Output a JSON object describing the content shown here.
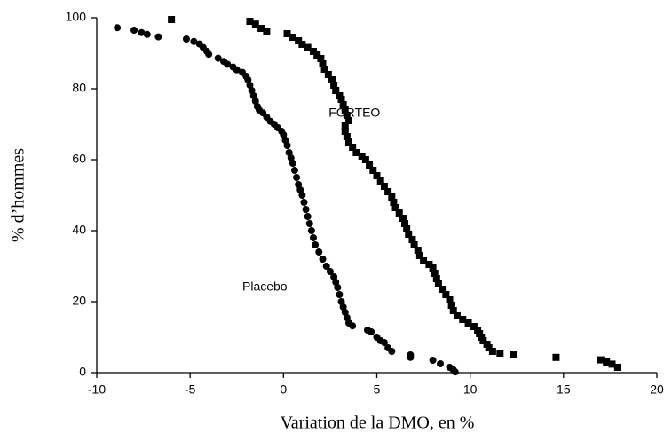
{
  "chart_data": {
    "type": "scatter",
    "xlabel": "Variation de la DMO, en %",
    "ylabel": "% d’hommes",
    "xlim": [
      -10,
      20
    ],
    "xticks": [
      -10,
      -5,
      0,
      5,
      10,
      15,
      20
    ],
    "ylim": [
      0,
      100
    ],
    "yticks": [
      0,
      20,
      40,
      60,
      80,
      100
    ],
    "grid": false,
    "annotations": [
      {
        "text": "FORTEO",
        "x": 3.8,
        "y": 73
      },
      {
        "text": "Placebo",
        "x": -1,
        "y": 24
      }
    ],
    "series": [
      {
        "name": "Placebo",
        "color": "#000000",
        "marker": "circle",
        "x": [
          -8.9,
          -8,
          -7.6,
          -7.3,
          -6.7,
          -5.2,
          -4.8,
          -4.5,
          -4.3,
          -4.1,
          -4,
          -3.5,
          -3.2,
          -3,
          -2.7,
          -2.5,
          -2.2,
          -2,
          -1.9,
          -1.8,
          -1.7,
          -1.6,
          -1.5,
          -1.4,
          -1.3,
          -1.1,
          -0.9,
          -0.7,
          -0.5,
          -0.3,
          -0.1,
          0,
          0.1,
          0.2,
          0.3,
          0.4,
          0.5,
          0.6,
          0.7,
          0.8,
          0.9,
          1,
          1.1,
          1.2,
          1.3,
          1.4,
          1.5,
          1.6,
          1.7,
          1.9,
          2.1,
          2.3,
          2.5,
          2.7,
          2.8,
          2.9,
          3,
          3.1,
          3.2,
          3.3,
          3.4,
          3.5,
          3.7,
          4.5,
          4.7,
          5,
          5.2,
          5.4,
          5.6,
          5.8,
          6.8,
          6.8,
          8,
          8.4,
          8.9,
          9.1,
          9.2
        ],
        "y": [
          97.2,
          96.5,
          95.8,
          95.3,
          94.6,
          94,
          93.3,
          92.6,
          91.6,
          90.5,
          89.7,
          88.6,
          87.7,
          86.9,
          86.1,
          85.3,
          84.6,
          83.5,
          82.5,
          81,
          79.5,
          78,
          76.5,
          75,
          74,
          73.2,
          72,
          70.8,
          70,
          69,
          68,
          67,
          65.5,
          64,
          62,
          60.5,
          59,
          57,
          55,
          53,
          51.5,
          50,
          48,
          46,
          44,
          42,
          40,
          38,
          36,
          34,
          32,
          30,
          28.5,
          27,
          25.5,
          24,
          22,
          20,
          18.5,
          17,
          15.5,
          14,
          13.2,
          12,
          11.5,
          10,
          9,
          8.5,
          7,
          6,
          5,
          4.3,
          3.5,
          2.5,
          1.5,
          0.8,
          0.2
        ]
      },
      {
        "name": "FORTEO",
        "color": "#000000",
        "marker": "square",
        "x": [
          -6,
          -1.8,
          -1.5,
          -1.2,
          -0.9,
          0.2,
          0.5,
          0.8,
          1,
          1.3,
          1.6,
          1.8,
          2,
          2.1,
          2.2,
          2.4,
          2.6,
          2.7,
          2.8,
          3,
          3.1,
          3.2,
          3.3,
          3.4,
          3.5,
          3.3,
          3.3,
          3.4,
          3.5,
          3.7,
          3.9,
          4.2,
          4.4,
          4.6,
          4.8,
          5,
          5.2,
          5.4,
          5.6,
          5.8,
          5.9,
          6,
          6.2,
          6.4,
          6.5,
          6.6,
          6.7,
          6.9,
          7,
          7.2,
          7.3,
          7.5,
          7.8,
          8,
          8.1,
          8.2,
          8.3,
          8.5,
          8.7,
          8.9,
          9,
          9.1,
          9.3,
          9.6,
          9.9,
          10.2,
          10.4,
          10.5,
          10.6,
          10.7,
          10.9,
          11,
          11.2,
          11.6,
          12.3,
          14.6,
          17,
          17.3,
          17.6,
          17.9
        ],
        "y": [
          99.5,
          99,
          98.2,
          97,
          96,
          95.5,
          94.5,
          93.5,
          92.5,
          91.6,
          90.5,
          89.5,
          88.5,
          87,
          85.5,
          84,
          82.5,
          81,
          79.5,
          78,
          77,
          75.5,
          74,
          72.5,
          71,
          69.5,
          68,
          66.5,
          65,
          63.5,
          62,
          61,
          60,
          58.5,
          57,
          55.5,
          54,
          52.5,
          51,
          49.5,
          48,
          46.5,
          45,
          43.5,
          42,
          40.5,
          39,
          37.5,
          36,
          34.5,
          33,
          31.5,
          30.5,
          29.5,
          28,
          26.5,
          25,
          23.5,
          22,
          20.5,
          19,
          17.5,
          16,
          15,
          14,
          13,
          12,
          11,
          10,
          9,
          8,
          7,
          6,
          5.5,
          5,
          4.3,
          3.6,
          3,
          2.4,
          1.5
        ]
      }
    ]
  }
}
